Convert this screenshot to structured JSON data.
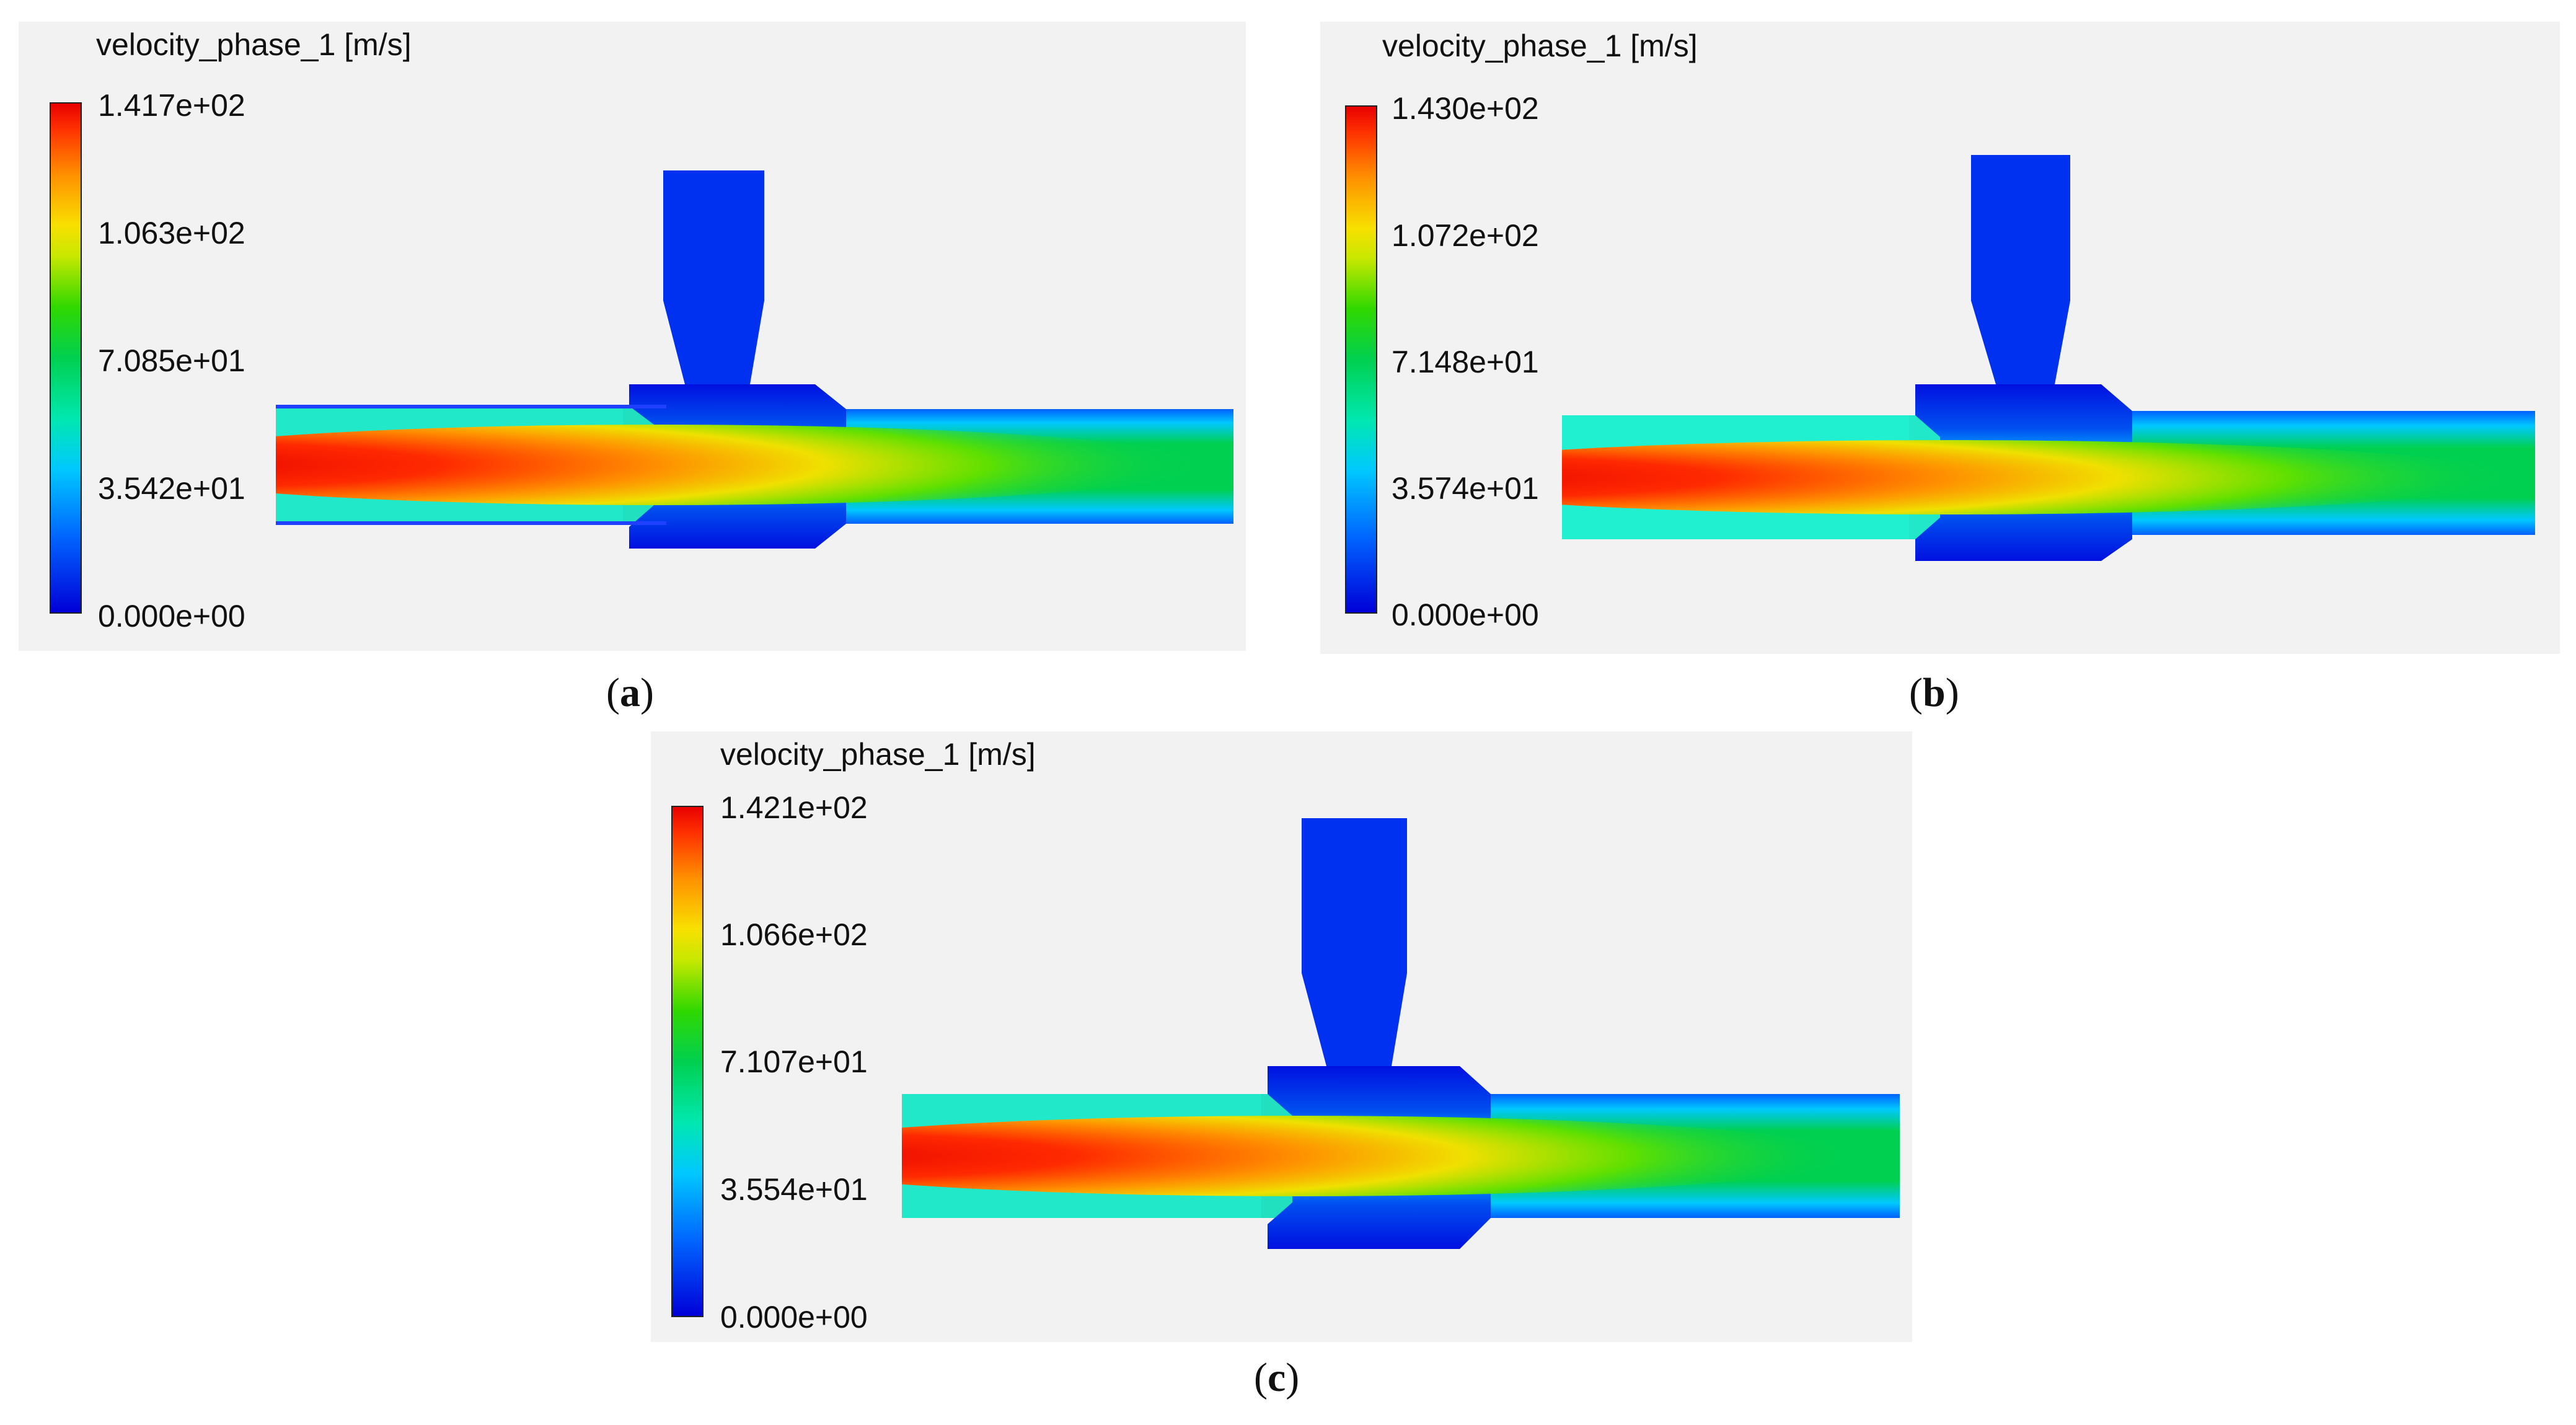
{
  "figures": [
    {
      "label": "a",
      "colorbar_title": "velocity_phase_1 [m/s]",
      "ticks": [
        "1.417e+02",
        "1.063e+02",
        "7.085e+01",
        "3.542e+01",
        "0.000e+00"
      ],
      "max_velocity": 141.7
    },
    {
      "label": "b",
      "colorbar_title": "velocity_phase_1 [m/s]",
      "ticks": [
        "1.430e+02",
        "1.072e+02",
        "7.148e+01",
        "3.574e+01",
        "0.000e+00"
      ],
      "max_velocity": 143.0
    },
    {
      "label": "c",
      "colorbar_title": "velocity_phase_1 [m/s]",
      "ticks": [
        "1.421e+02",
        "1.066e+02",
        "7.107e+01",
        "3.554e+01",
        "0.000e+00"
      ],
      "max_velocity": 142.1
    }
  ],
  "colormap": [
    "#0000d8",
    "#0066ff",
    "#00c8ff",
    "#00e8b0",
    "#00d050",
    "#c8e800",
    "#ff9000",
    "#e80000"
  ]
}
